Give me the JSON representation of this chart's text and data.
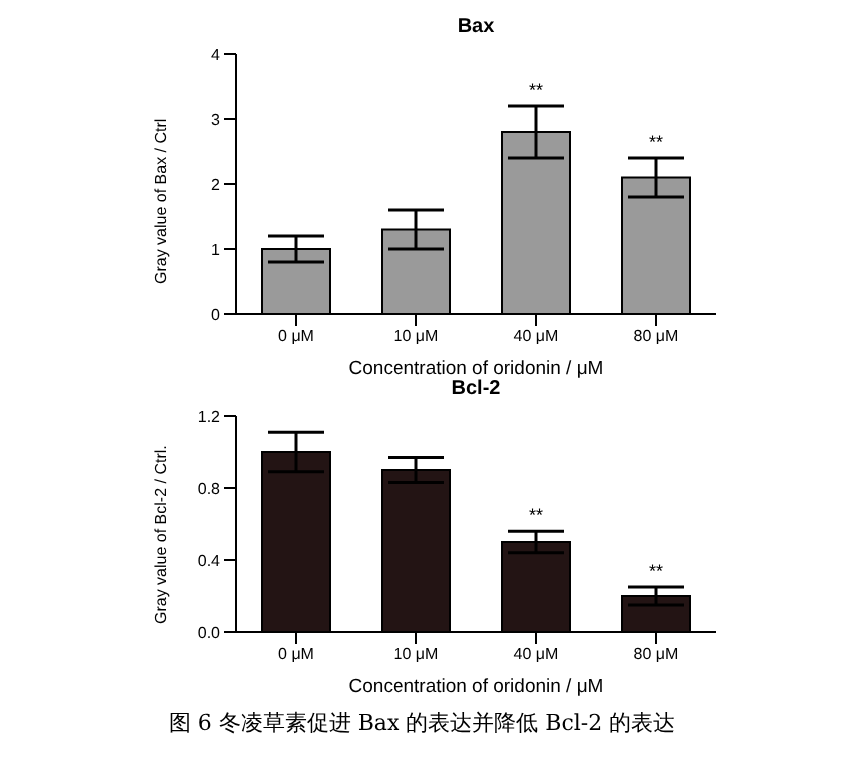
{
  "chart_data": [
    {
      "type": "bar",
      "title": "Bax",
      "xlabel": "Concentration of oridonin / μM",
      "ylabel": "Gray value of Bax / Ctrl",
      "categories": [
        "0 μM",
        "10 μM",
        "40 μM",
        "80 μM"
      ],
      "values": [
        1.0,
        1.3,
        2.8,
        2.1
      ],
      "errors": [
        0.2,
        0.3,
        0.4,
        0.3
      ],
      "color": "#9a9a9a",
      "ylim": [
        0,
        4
      ],
      "yticks": [
        0,
        1,
        2,
        3,
        4
      ],
      "grid": false,
      "legend": false,
      "annotations": [
        {
          "text": "**",
          "x": "40 μM",
          "y": 3.2
        },
        {
          "text": "**",
          "x": "80 μM",
          "y": 2.4
        }
      ]
    },
    {
      "type": "bar",
      "title": "Bcl-2",
      "xlabel": "Concentration of oridonin / μM",
      "ylabel": "Gray value of Bcl-2 / Ctrl.",
      "categories": [
        "0 μM",
        "10 μM",
        "40 μM",
        "80 μM"
      ],
      "values": [
        1.0,
        0.9,
        0.5,
        0.2
      ],
      "errors": [
        0.11,
        0.07,
        0.06,
        0.05
      ],
      "color": "#231414",
      "ylim": [
        0,
        1.2
      ],
      "yticks": [
        {
          "value": 0,
          "label": "0.0"
        },
        {
          "value": 0.4,
          "label": "0.4"
        },
        {
          "value": 0.8,
          "label": "0.8"
        },
        {
          "value": 1.2,
          "label": "1.2"
        }
      ],
      "grid": false,
      "legend": false,
      "annotations": [
        {
          "text": "**",
          "x": "40 μM",
          "y": 0.56
        },
        {
          "text": "**",
          "x": "80 μM",
          "y": 0.25
        },
        "图 6 冬凌草素促进 Bax 的表达并降低 Bcl-2 的表达"
      ]
    }
  ]
}
